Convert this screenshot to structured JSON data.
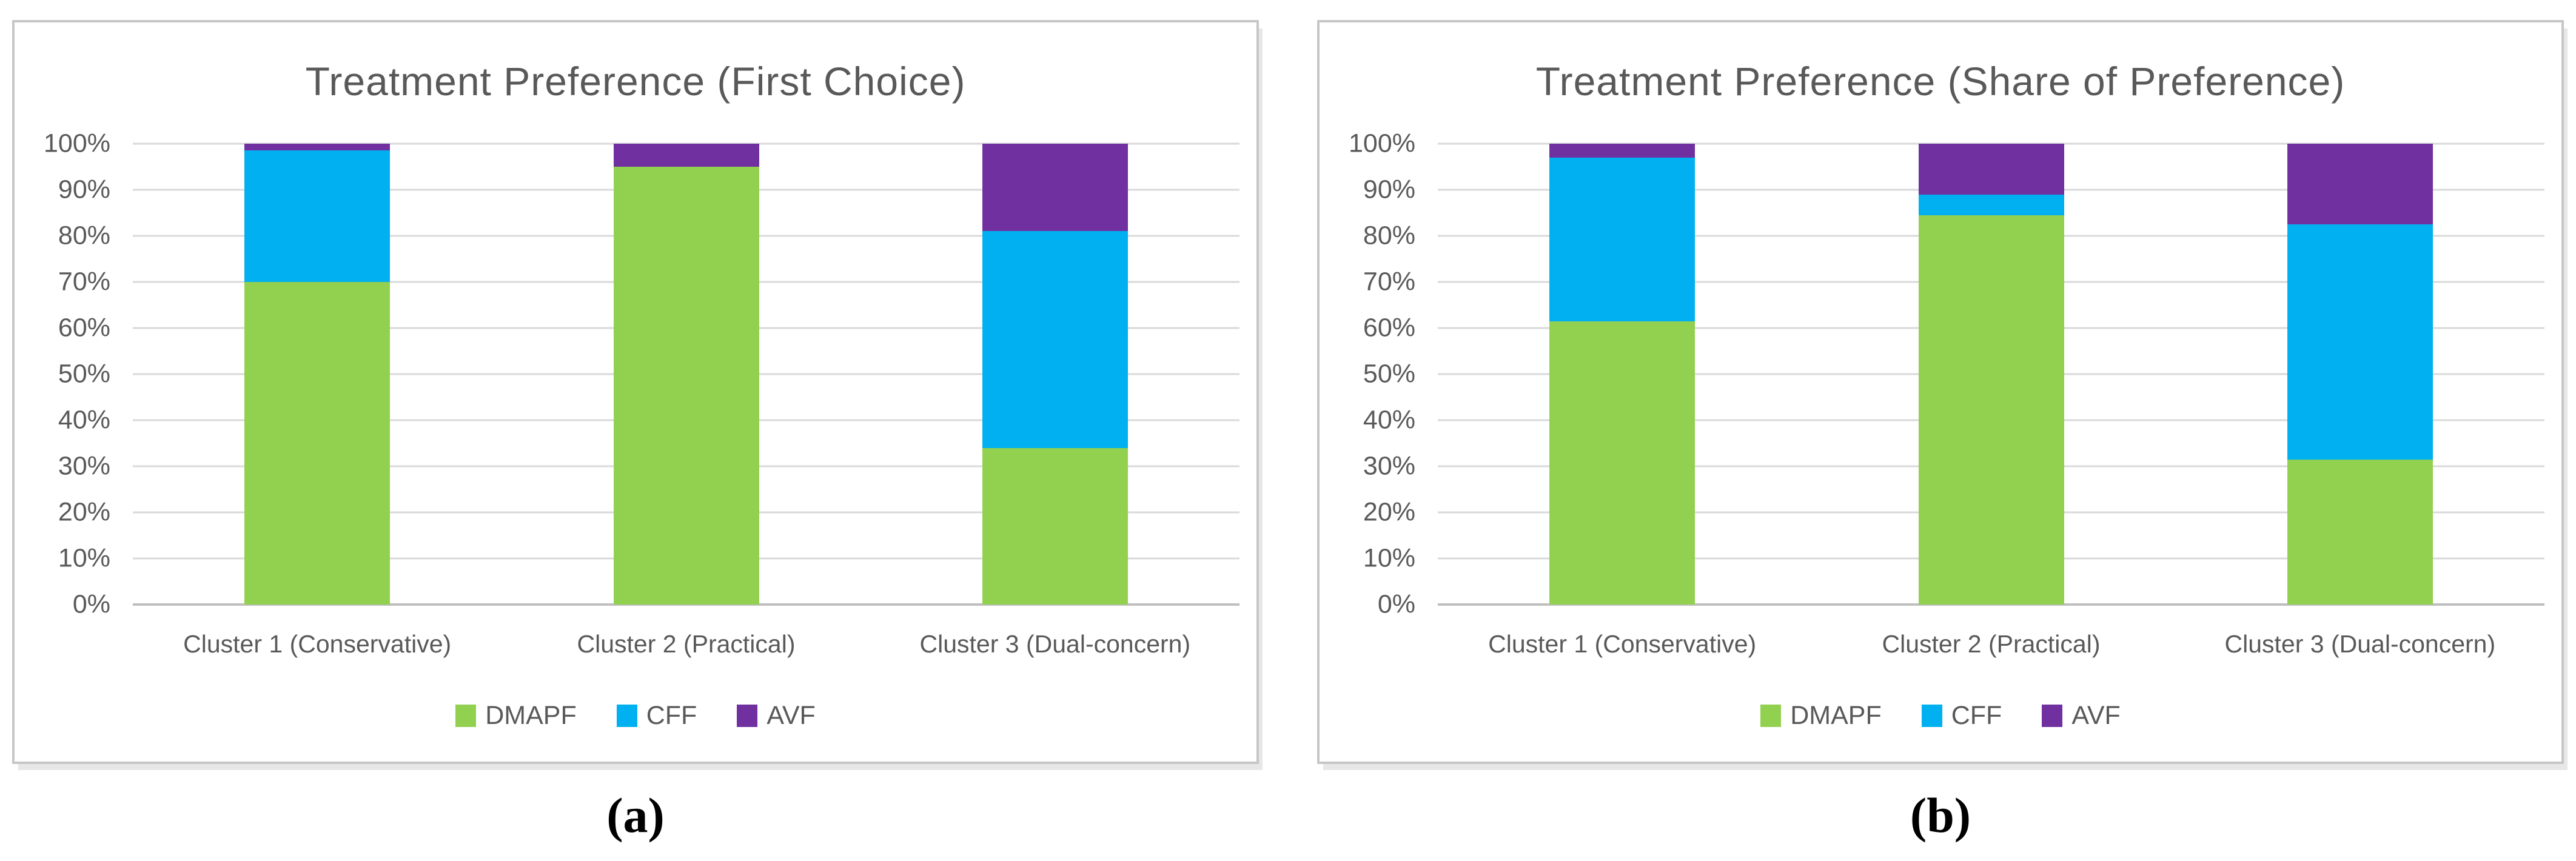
{
  "figure": {
    "panels": [
      {
        "caption": "(a)"
      },
      {
        "caption": "(b)"
      }
    ]
  },
  "chart_data": [
    {
      "type": "bar",
      "stacked": true,
      "title": "Treatment Preference (First Choice)",
      "categories": [
        "Cluster 1 (Conservative)",
        "Cluster 2 (Practical)",
        "Cluster 3 (Dual-concern)"
      ],
      "series": [
        {
          "name": "DMAPF",
          "color": "#92D050",
          "values": [
            70,
            95,
            34
          ]
        },
        {
          "name": "CFF",
          "color": "#00B0F0",
          "values": [
            28.5,
            0,
            47
          ]
        },
        {
          "name": "AVF",
          "color": "#7030A0",
          "values": [
            1.5,
            5,
            19
          ]
        }
      ],
      "ylabel": "",
      "xlabel": "",
      "ylim": [
        0,
        100
      ],
      "yticks": [
        "0%",
        "10%",
        "20%",
        "30%",
        "40%",
        "50%",
        "60%",
        "70%",
        "80%",
        "90%",
        "100%"
      ],
      "grid": true,
      "legend_position": "bottom"
    },
    {
      "type": "bar",
      "stacked": true,
      "title": "Treatment Preference (Share of Preference)",
      "categories": [
        "Cluster 1 (Conservative)",
        "Cluster 2 (Practical)",
        "Cluster 3 (Dual-concern)"
      ],
      "series": [
        {
          "name": "DMAPF",
          "color": "#92D050",
          "values": [
            61.5,
            84.5,
            31.5
          ]
        },
        {
          "name": "CFF",
          "color": "#00B0F0",
          "values": [
            35.5,
            4.5,
            51
          ]
        },
        {
          "name": "AVF",
          "color": "#7030A0",
          "values": [
            3,
            11,
            17.5
          ]
        }
      ],
      "ylabel": "",
      "xlabel": "",
      "ylim": [
        0,
        100
      ],
      "yticks": [
        "0%",
        "10%",
        "20%",
        "30%",
        "40%",
        "50%",
        "60%",
        "70%",
        "80%",
        "90%",
        "100%"
      ],
      "grid": true,
      "legend_position": "bottom"
    }
  ],
  "style": {
    "text_color": "#595959",
    "gridline_color": "#D9D9D9",
    "axis_line_color": "#BFBFBF",
    "panel_border_color": "#C6C6C6"
  }
}
